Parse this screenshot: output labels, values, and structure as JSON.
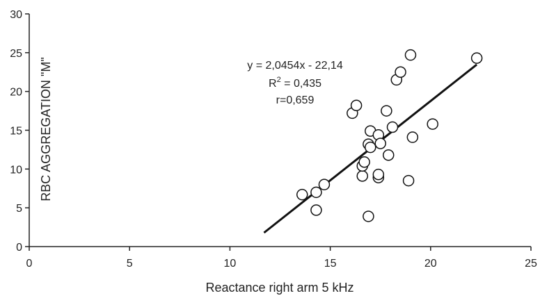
{
  "chart_data": {
    "type": "scatter",
    "xlabel": "Reactance right arm 5 kHz",
    "ylabel": "RBC AGGREGATION \"M\"",
    "xlim": [
      0,
      25
    ],
    "ylim": [
      0,
      30
    ],
    "x_ticks": [
      "0",
      "5",
      "10",
      "15",
      "20",
      "25"
    ],
    "y_ticks": [
      "0",
      "5",
      "10",
      "15",
      "20",
      "25",
      "30"
    ],
    "grid": false,
    "marker": "open-circle",
    "points": [
      {
        "x": 13.6,
        "y": 6.7
      },
      {
        "x": 14.3,
        "y": 7.0
      },
      {
        "x": 14.7,
        "y": 8.0
      },
      {
        "x": 14.3,
        "y": 4.7
      },
      {
        "x": 16.9,
        "y": 3.9
      },
      {
        "x": 16.6,
        "y": 9.1
      },
      {
        "x": 16.6,
        "y": 10.4
      },
      {
        "x": 16.7,
        "y": 10.9
      },
      {
        "x": 16.9,
        "y": 13.2
      },
      {
        "x": 17.0,
        "y": 12.8
      },
      {
        "x": 17.0,
        "y": 14.9
      },
      {
        "x": 17.4,
        "y": 8.9
      },
      {
        "x": 17.4,
        "y": 9.3
      },
      {
        "x": 17.4,
        "y": 14.4
      },
      {
        "x": 17.5,
        "y": 13.3
      },
      {
        "x": 17.8,
        "y": 17.5
      },
      {
        "x": 17.9,
        "y": 11.8
      },
      {
        "x": 16.1,
        "y": 17.2
      },
      {
        "x": 16.3,
        "y": 18.2
      },
      {
        "x": 18.1,
        "y": 15.4
      },
      {
        "x": 18.3,
        "y": 21.5
      },
      {
        "x": 18.5,
        "y": 22.5
      },
      {
        "x": 18.9,
        "y": 8.5
      },
      {
        "x": 19.0,
        "y": 24.7
      },
      {
        "x": 19.1,
        "y": 14.1
      },
      {
        "x": 20.1,
        "y": 15.8
      },
      {
        "x": 22.3,
        "y": 24.3
      }
    ],
    "trendline": {
      "slope": 2.0454,
      "intercept": -22.14,
      "x_range": [
        11.7,
        22.3
      ]
    },
    "annotations": [
      "y = 2,0454x - 22,14",
      "R",
      "2",
      " = 0,435",
      "r=0,659"
    ]
  }
}
